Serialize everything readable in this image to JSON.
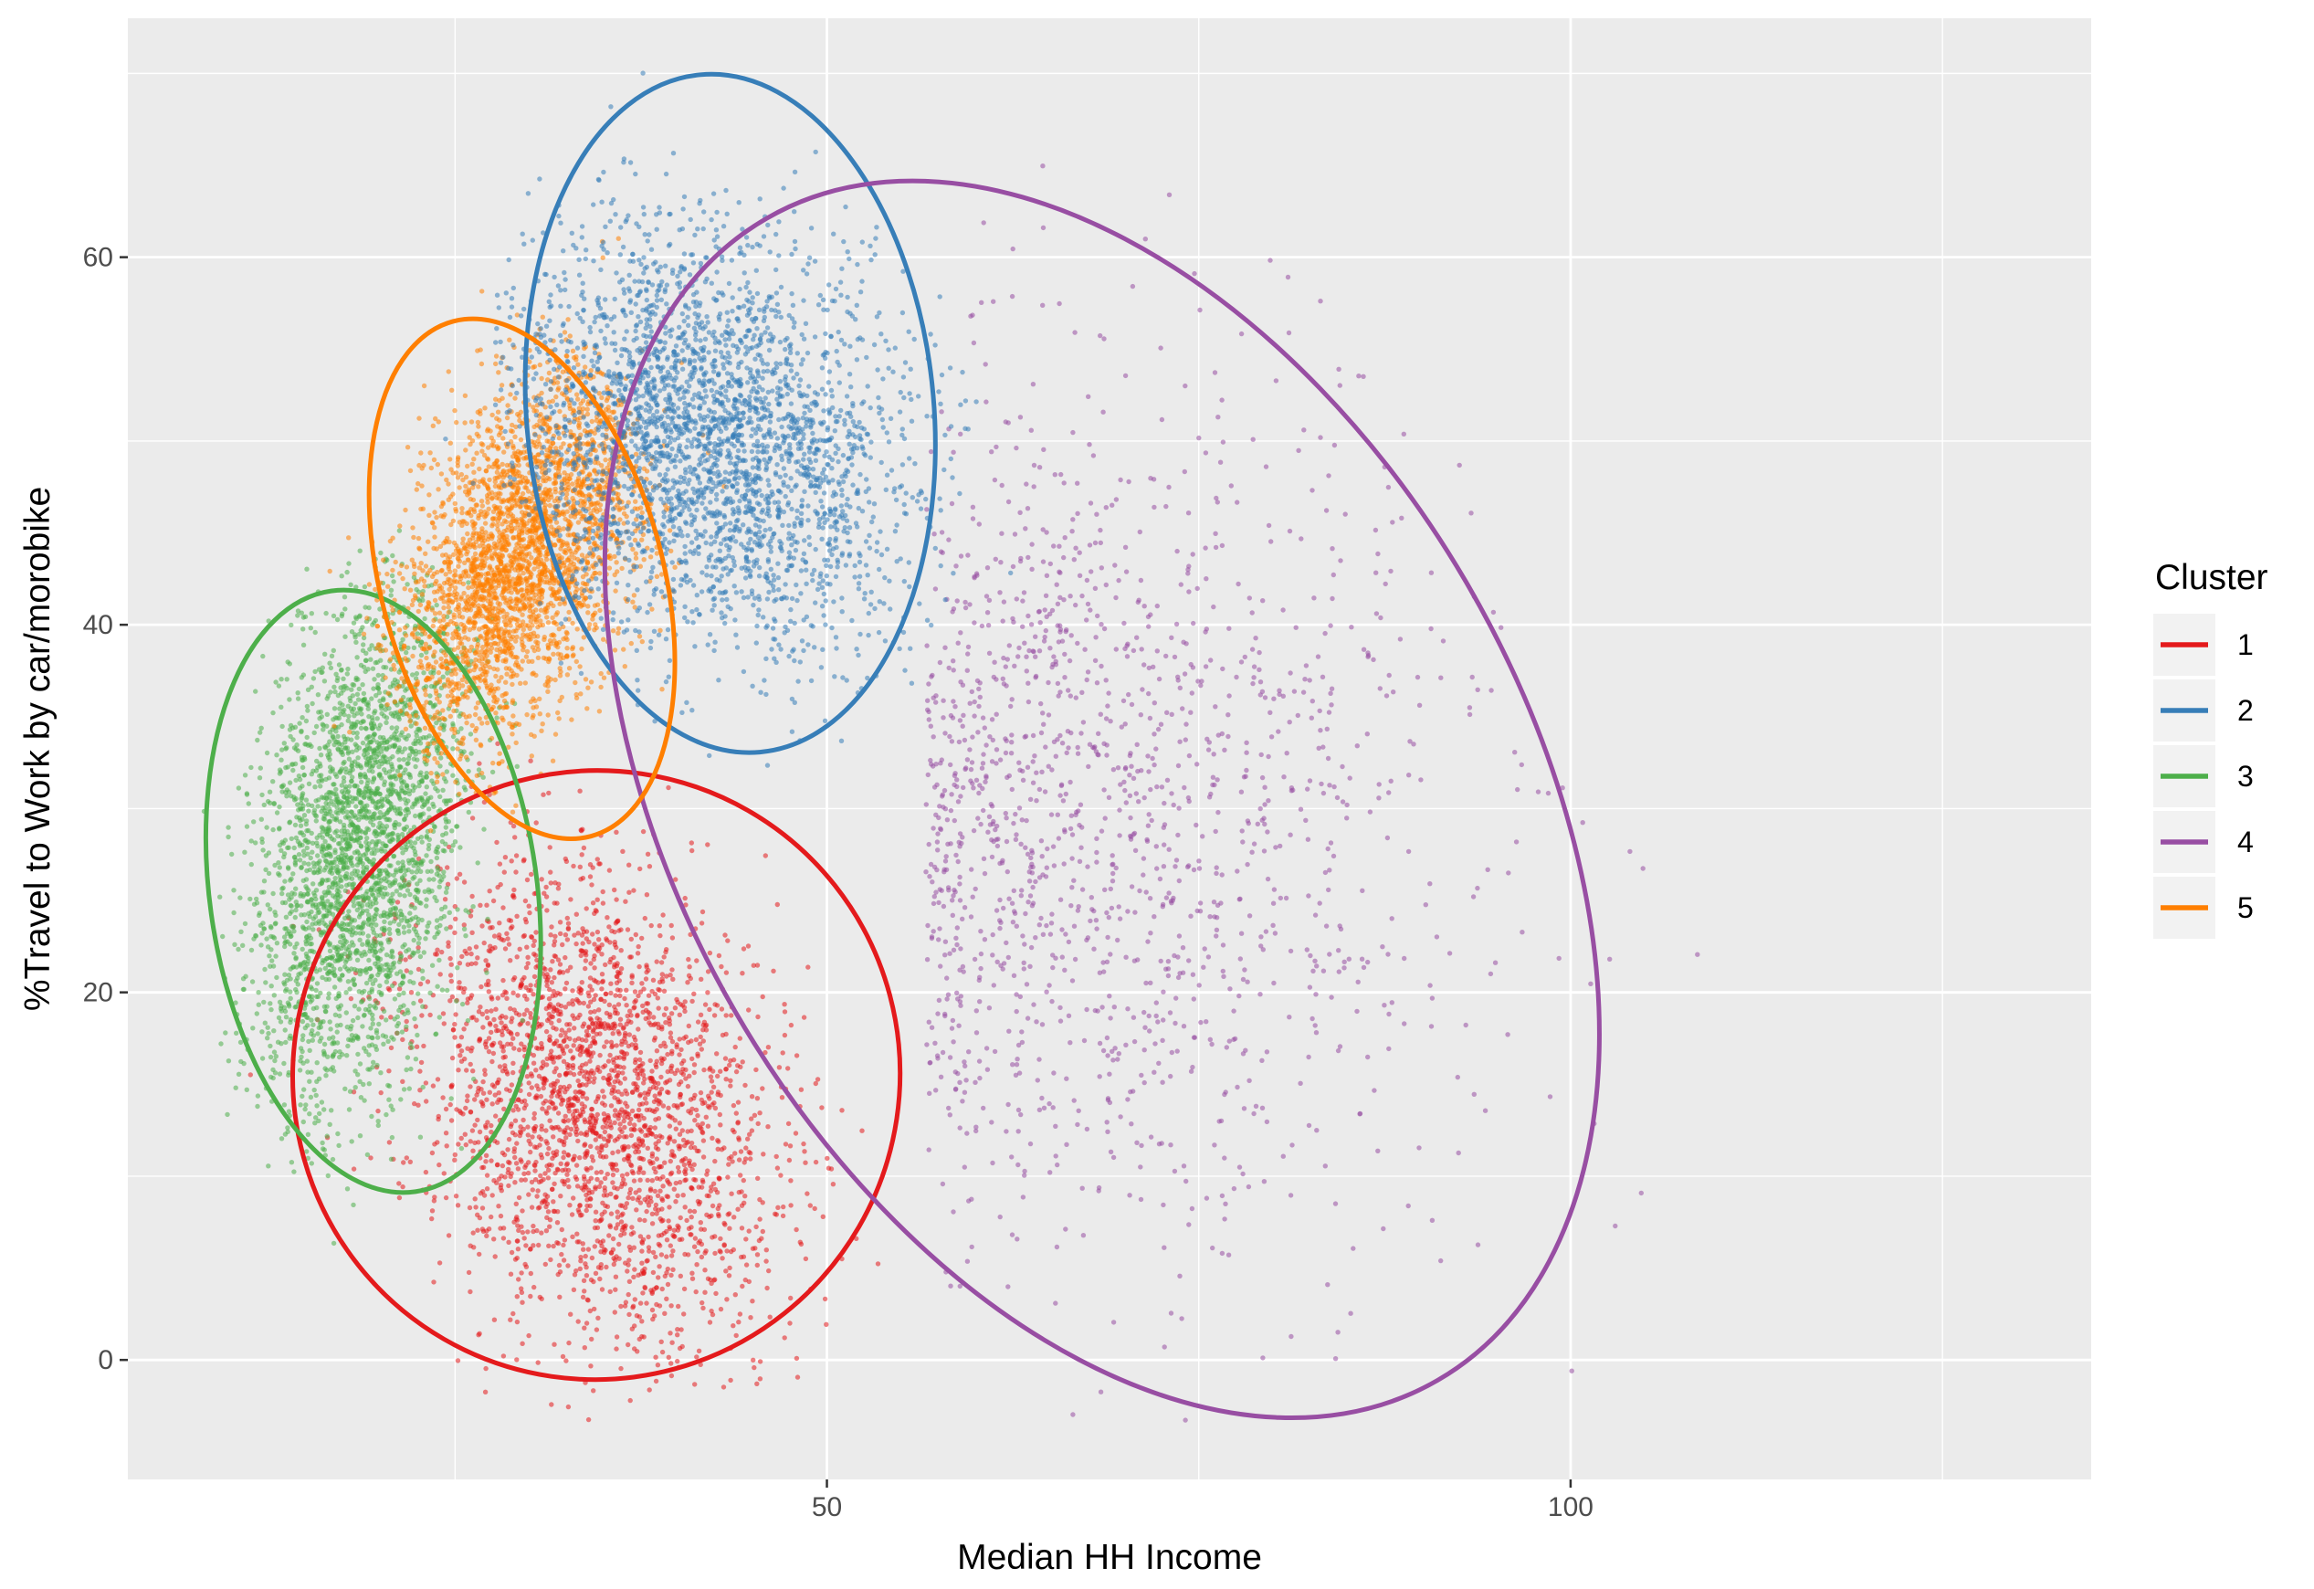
{
  "chart_data": {
    "type": "scatter",
    "title": "",
    "xlabel": "Median HH Income",
    "ylabel": "%Travel to Work by car/morobike",
    "xlim": [
      3,
      135
    ],
    "ylim": [
      -6.5,
      73
    ],
    "x_ticks": [
      50,
      100
    ],
    "x_tick_labels": [
      "50",
      "100"
    ],
    "y_ticks": [
      0,
      20,
      40,
      60
    ],
    "y_tick_labels": [
      "0",
      "20",
      "40",
      "60"
    ],
    "grid": true,
    "legend": {
      "title": "Cluster",
      "position": "right"
    },
    "series": [
      {
        "name": "1",
        "color": "#E41A1C",
        "center": [
          34.5,
          14
        ],
        "spread": [
          6,
          6.5
        ],
        "corr": -0.3,
        "count": 2600,
        "ellipse": {
          "center": [
            34.5,
            15.5
          ],
          "semi_axes": [
            20.5,
            16.5
          ],
          "angle_deg": -60
        }
      },
      {
        "name": "2",
        "color": "#377EB8",
        "center": [
          42,
          50
        ],
        "spread": [
          6.5,
          5.5
        ],
        "corr": -0.2,
        "count": 3000,
        "ellipse": {
          "center": [
            43.5,
            51.5
          ],
          "semi_axes": [
            13.7,
            18.5
          ],
          "angle_deg": -5
        }
      },
      {
        "name": "3",
        "color": "#4DAF4A",
        "center": [
          18.5,
          28
        ],
        "spread": [
          3.5,
          7
        ],
        "corr": 0.35,
        "count": 2800,
        "ellipse": {
          "center": [
            19.5,
            25.5
          ],
          "semi_axes": [
            11,
            16.5
          ],
          "angle_deg": -8
        }
      },
      {
        "name": "4",
        "color": "#984EA3",
        "center": [
          66,
          30
        ],
        "spread": [
          12,
          12
        ],
        "corr": -0.35,
        "count": 1500,
        "ellipse": {
          "center": [
            68.5,
            30.5
          ],
          "semi_axes": [
            28.5,
            36.5
          ],
          "angle_deg": -30
        }
      },
      {
        "name": "5",
        "color": "#FF7F00",
        "center": [
          29.5,
          44
        ],
        "spread": [
          4.5,
          5.5
        ],
        "corr": 0.55,
        "count": 3000,
        "ellipse": {
          "center": [
            29.5,
            42.5
          ],
          "semi_axes": [
            9.5,
            14.5
          ],
          "angle_deg": -15
        }
      }
    ]
  }
}
